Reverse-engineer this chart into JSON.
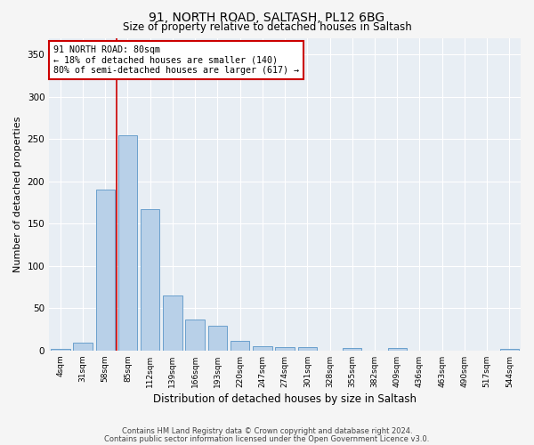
{
  "title1": "91, NORTH ROAD, SALTASH, PL12 6BG",
  "title2": "Size of property relative to detached houses in Saltash",
  "xlabel": "Distribution of detached houses by size in Saltash",
  "ylabel": "Number of detached properties",
  "categories": [
    "4sqm",
    "31sqm",
    "58sqm",
    "85sqm",
    "112sqm",
    "139sqm",
    "166sqm",
    "193sqm",
    "220sqm",
    "247sqm",
    "274sqm",
    "301sqm",
    "328sqm",
    "355sqm",
    "382sqm",
    "409sqm",
    "436sqm",
    "463sqm",
    "490sqm",
    "517sqm",
    "544sqm"
  ],
  "values": [
    2,
    9,
    190,
    255,
    167,
    65,
    37,
    29,
    11,
    5,
    4,
    4,
    0,
    3,
    0,
    3,
    0,
    0,
    0,
    0,
    2
  ],
  "bar_color": "#b8d0e8",
  "bar_edge_color": "#6aa0cc",
  "bar_edge_width": 0.7,
  "vline_color": "#cc0000",
  "annotation_text": "91 NORTH ROAD: 80sqm\n← 18% of detached houses are smaller (140)\n80% of semi-detached houses are larger (617) →",
  "annotation_box_color": "#ffffff",
  "annotation_box_edge_color": "#cc0000",
  "ylim": [
    0,
    370
  ],
  "yticks": [
    0,
    50,
    100,
    150,
    200,
    250,
    300,
    350
  ],
  "plot_bg_color": "#e8eef4",
  "grid_color": "#ffffff",
  "fig_bg_color": "#f5f5f5",
  "footer1": "Contains HM Land Registry data © Crown copyright and database right 2024.",
  "footer2": "Contains public sector information licensed under the Open Government Licence v3.0."
}
